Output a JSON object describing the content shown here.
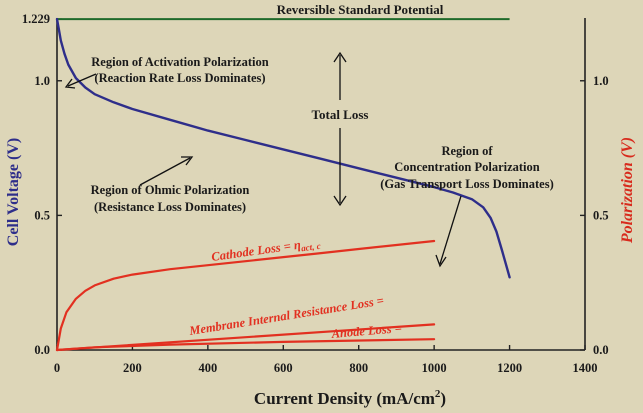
{
  "chart_data": {
    "type": "line",
    "xlabel": "Current Density (mA/cm",
    "xlabel_sup": "2",
    "xlabel_close": ")",
    "ylabel_left": "Cell Voltage (V)",
    "ylabel_right": "Polarization (V)",
    "xlim": [
      0,
      1400
    ],
    "ylim": [
      0,
      1.3
    ],
    "x_ticks": [
      0,
      200,
      400,
      600,
      800,
      1000,
      1200,
      1400
    ],
    "y_ticks_left": [
      {
        "value": 0.0,
        "label": "0.0"
      },
      {
        "value": 0.5,
        "label": "0.5"
      },
      {
        "value": 1.0,
        "label": "1.0"
      },
      {
        "value": 1.229,
        "label": "1.229"
      }
    ],
    "y_ticks_right": [
      {
        "value": 0.0,
        "label": "0.0"
      },
      {
        "value": 0.5,
        "label": "0.5"
      },
      {
        "value": 1.0,
        "label": "1.0"
      }
    ],
    "colors": {
      "background": "#ddd6b8",
      "cell_voltage": "#2e2e8a",
      "losses": "#e23020",
      "reversible": "#1f6a2a",
      "right_axis_label": "#d82a1c",
      "text": "#1a1a1a"
    },
    "series": [
      {
        "name": "Cell Voltage",
        "key": "voltage",
        "x": [
          0,
          5,
          10,
          20,
          30,
          50,
          75,
          100,
          150,
          200,
          300,
          400,
          500,
          600,
          700,
          800,
          900,
          1000,
          1050,
          1100,
          1130,
          1150,
          1165,
          1180,
          1190,
          1200
        ],
        "y": [
          1.229,
          1.19,
          1.15,
          1.1,
          1.06,
          1.01,
          0.975,
          0.95,
          0.92,
          0.895,
          0.855,
          0.815,
          0.78,
          0.745,
          0.71,
          0.675,
          0.64,
          0.605,
          0.585,
          0.56,
          0.53,
          0.49,
          0.44,
          0.37,
          0.32,
          0.27
        ]
      },
      {
        "name": "Cathode Loss",
        "key": "cathode",
        "x": [
          0,
          10,
          25,
          50,
          75,
          100,
          150,
          200,
          300,
          400,
          500,
          600,
          700,
          800,
          900,
          1000
        ],
        "y": [
          0.0,
          0.08,
          0.14,
          0.19,
          0.22,
          0.24,
          0.265,
          0.28,
          0.3,
          0.315,
          0.33,
          0.345,
          0.36,
          0.375,
          0.39,
          0.405
        ]
      },
      {
        "name": "Membrane Internal Resistance Loss",
        "key": "membrane",
        "x": [
          0,
          1000
        ],
        "y": [
          0.0,
          0.095
        ]
      },
      {
        "name": "Anode Loss",
        "key": "anode",
        "x": [
          0,
          100,
          300,
          600,
          1000
        ],
        "y": [
          0.0,
          0.01,
          0.02,
          0.03,
          0.04
        ]
      }
    ],
    "reversible_potential": {
      "value": 1.229,
      "x": [
        0,
        1200
      ],
      "label": "Reversible Standard Potential"
    },
    "total_loss": {
      "label": "Total Loss",
      "x": 740
    },
    "annotations": {
      "activation": [
        "Region of Activation Polarization",
        "(Reaction Rate Loss Dominates)"
      ],
      "ohmic": [
        "Region of Ohmic Polarization",
        "(Resistance Loss Dominates)"
      ],
      "concentration": [
        "Region of",
        "Concentration Polarization",
        "(Gas Transport Loss Dominates)"
      ],
      "cathode_label": "Cathode Loss = ",
      "cathode_eta": "η",
      "cathode_sub": "act, c",
      "membrane_label": "Membrane Internal Resistance Loss =",
      "anode_label": "Anode Loss ="
    }
  }
}
